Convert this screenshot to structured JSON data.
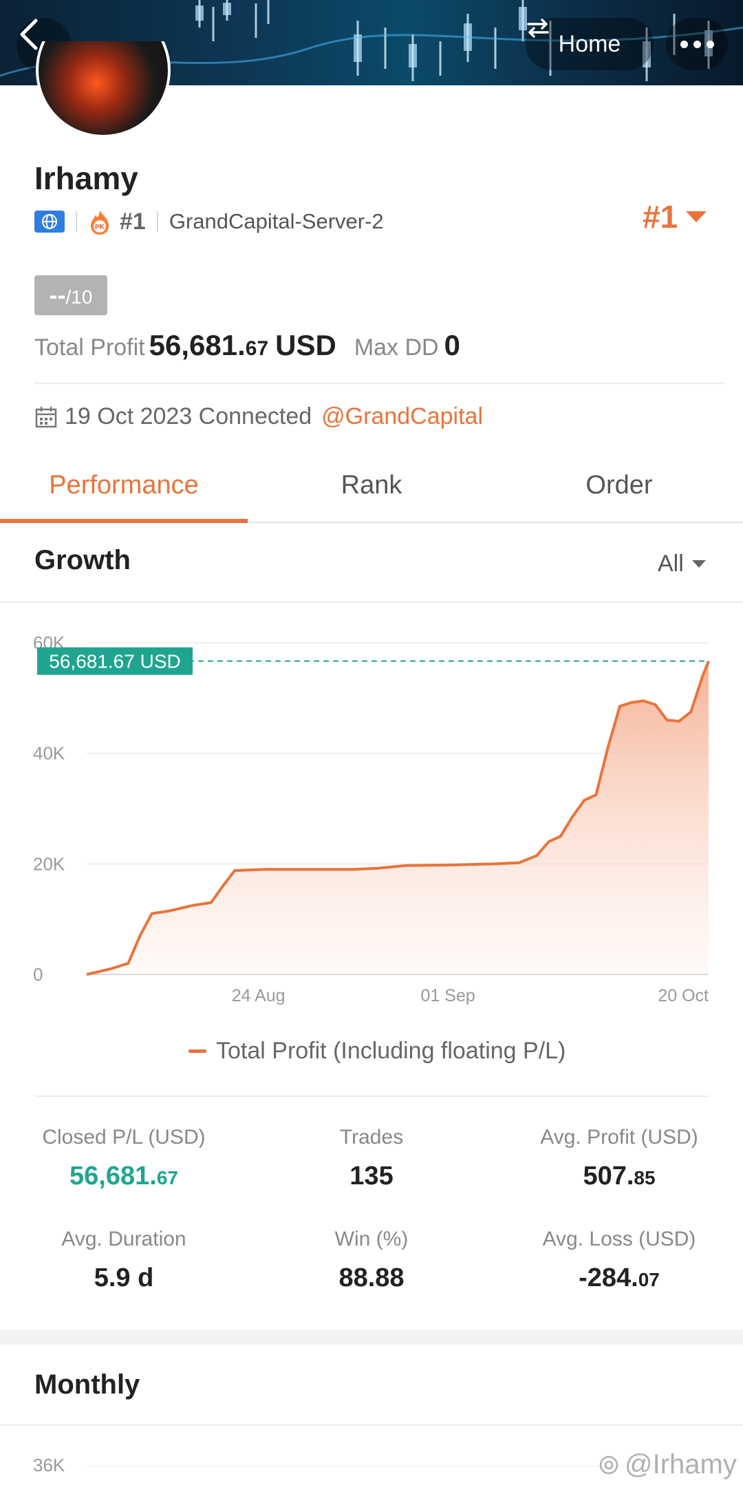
{
  "header": {
    "home_label": "Home",
    "back_icon": "chevron-left-icon",
    "swap_icon": "swap-arrows-icon",
    "more_icon": "more-dots-icon"
  },
  "profile": {
    "username": "Irhamy",
    "rank_badge": "#1",
    "server": "GrandCapital-Server-2",
    "rank_big": "#1",
    "score_value": "--",
    "score_max": "/10",
    "total_profit_label": "Total Profit",
    "total_profit_int": "56,681.",
    "total_profit_dec": "67",
    "total_profit_unit": "USD",
    "max_dd_label": "Max DD",
    "max_dd_value": "0",
    "connected_text": "19 Oct 2023 Connected",
    "broker_handle": "@GrandCapital"
  },
  "tabs": [
    {
      "label": "Performance"
    },
    {
      "label": "Rank"
    },
    {
      "label": "Order"
    }
  ],
  "growth": {
    "title": "Growth",
    "range": "All",
    "current_label": "56,681.67 USD",
    "legend": "Total Profit (Including floating P/L)"
  },
  "chart_data": {
    "type": "area",
    "title": "",
    "xlabel": "",
    "ylabel": "",
    "ylim": [
      0,
      60000
    ],
    "yticks": [
      "0",
      "20K",
      "40K",
      "60K"
    ],
    "xticks": [
      "24 Aug",
      "01 Sep",
      "20 Oct"
    ],
    "series": [
      {
        "name": "Total Profit (Including floating P/L)",
        "color": "#e8743b",
        "points": [
          [
            0.0,
            0
          ],
          [
            0.04,
            1000
          ],
          [
            0.07,
            2000
          ],
          [
            0.09,
            7000
          ],
          [
            0.11,
            11000
          ],
          [
            0.14,
            11500
          ],
          [
            0.18,
            12500
          ],
          [
            0.21,
            13000
          ],
          [
            0.23,
            16000
          ],
          [
            0.25,
            18800
          ],
          [
            0.3,
            19000
          ],
          [
            0.45,
            19000
          ],
          [
            0.49,
            19200
          ],
          [
            0.54,
            19700
          ],
          [
            0.62,
            19800
          ],
          [
            0.69,
            20000
          ],
          [
            0.73,
            20200
          ],
          [
            0.76,
            21500
          ],
          [
            0.78,
            24000
          ],
          [
            0.8,
            25000
          ],
          [
            0.82,
            28500
          ],
          [
            0.84,
            31500
          ],
          [
            0.86,
            32500
          ],
          [
            0.88,
            41000
          ],
          [
            0.9,
            48500
          ],
          [
            0.92,
            49200
          ],
          [
            0.94,
            49500
          ],
          [
            0.96,
            48800
          ],
          [
            0.98,
            46000
          ],
          [
            1.0,
            45800
          ],
          [
            1.02,
            47500
          ],
          [
            1.04,
            54000
          ],
          [
            1.05,
            56681.67
          ]
        ]
      }
    ],
    "current_value": 56681.67,
    "grid": true
  },
  "stats": {
    "closed_pl_label": "Closed P/L (USD)",
    "closed_pl_int": "56,681.",
    "closed_pl_dec": "67",
    "trades_label": "Trades",
    "trades_value": "135",
    "avg_profit_label": "Avg. Profit (USD)",
    "avg_profit_int": "507.",
    "avg_profit_dec": "85",
    "avg_duration_label": "Avg. Duration",
    "avg_duration_value": "5.9 d",
    "win_label": "Win (%)",
    "win_value": "88.88",
    "avg_loss_label": "Avg. Loss (USD)",
    "avg_loss_int": "-284.",
    "avg_loss_dec": "07"
  },
  "monthly": {
    "title": "Monthly",
    "first_tick": "36K"
  },
  "watermark": "@Irhamy",
  "colors": {
    "accent": "#e8743b",
    "green": "#1fa58f"
  }
}
